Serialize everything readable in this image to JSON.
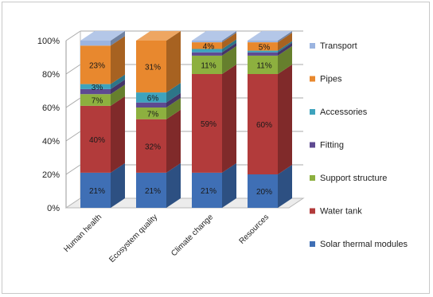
{
  "chart_data": {
    "type": "bar",
    "stacked": true,
    "percent": true,
    "three_d": true,
    "title": "",
    "xlabel": "",
    "ylabel": "",
    "ylim": [
      0,
      100
    ],
    "yticks": [
      "0%",
      "20%",
      "40%",
      "60%",
      "80%",
      "100%"
    ],
    "categories": [
      "Human health",
      "Ecosystem quality",
      "Climate change",
      "Resources"
    ],
    "legend_position": "right",
    "series": [
      {
        "name": "Solar thermal modules",
        "color": "#3f6fb5",
        "values": [
          21,
          21,
          21,
          20
        ],
        "labels": [
          "21%",
          "21%",
          "21%",
          "20%"
        ]
      },
      {
        "name": "Water tank",
        "color": "#b23b3b",
        "values": [
          40,
          32,
          59,
          60
        ],
        "labels": [
          "40%",
          "32%",
          "59%",
          "60%"
        ]
      },
      {
        "name": "Support structure",
        "color": "#8db03f",
        "values": [
          7,
          7,
          11,
          11
        ],
        "labels": [
          "7%",
          "7%",
          "11%",
          "11%"
        ]
      },
      {
        "name": "Fitting",
        "color": "#5e4a91",
        "values": [
          3,
          3,
          2,
          2
        ],
        "labels": [
          "",
          "",
          "",
          ""
        ]
      },
      {
        "name": "Accessories",
        "color": "#3ea3bd",
        "values": [
          3,
          6,
          2,
          1
        ],
        "labels": [
          "3%",
          "6%",
          "",
          ""
        ]
      },
      {
        "name": "Pipes",
        "color": "#e8882e",
        "values": [
          23,
          31,
          4,
          5
        ],
        "labels": [
          "23%",
          "31%",
          "4%",
          "5%"
        ]
      },
      {
        "name": "Transport",
        "color": "#9bb4e0",
        "values": [
          3,
          0,
          1,
          1
        ],
        "labels": [
          "",
          "",
          "",
          ""
        ]
      }
    ]
  }
}
